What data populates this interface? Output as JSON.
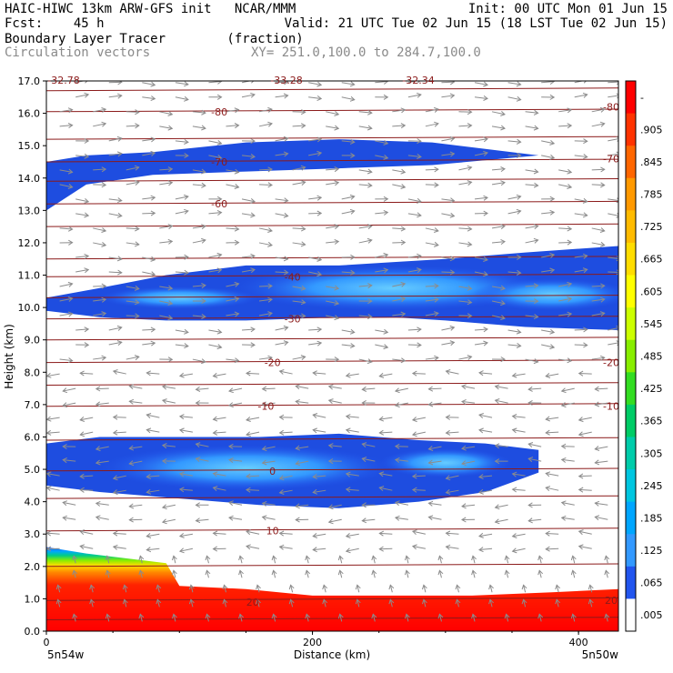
{
  "header": {
    "line1_left": "HAIC-HIWC 13km ARW-GFS init   NCAR/MMM",
    "line1_right": "Init: 00 UTC Mon 01 Jun 15",
    "line2_left": "Fcst:    45 h",
    "line2_right": "Valid: 21 UTC Tue 02 Jun 15 (18 LST Tue 02 Jun 15)",
    "line3_left": "Boundary Layer Tracer        (fraction)",
    "line4_left": "Circulation vectors",
    "line4_right": "XY= 251.0,100.0 to 284.7,100.0"
  },
  "colors": {
    "contour": "#8b1a1a",
    "vector": "#8c8c8c",
    "low_cloud": "#1e4de0"
  },
  "chart_data": {
    "type": "heatmap",
    "title": "Boundary Layer Tracer",
    "units": "(fraction)",
    "xlabel": "Distance (km)",
    "ylabel": "Height (km)",
    "xlim": [
      0,
      430
    ],
    "ylim": [
      0,
      17
    ],
    "x_ticks": [
      "0",
      "200",
      "400"
    ],
    "y_ticks": [
      "0.0",
      "1.0",
      "2.0",
      "3.0",
      "4.0",
      "5.0",
      "6.0",
      "7.0",
      "8.0",
      "9.0",
      "10.0",
      "11.0",
      "12.0",
      "13.0",
      "14.0",
      "15.0",
      "16.0",
      "17.0"
    ],
    "x_endpoint_labels": [
      "5n54w",
      "5n50w"
    ],
    "top_labels": [
      "-32.78",
      "-33.28",
      "-32.34"
    ],
    "colorbar": {
      "labels": [
        "-",
        ".905",
        ".845",
        ".785",
        ".725",
        ".665",
        ".605",
        ".545",
        ".485",
        ".425",
        ".365",
        ".305",
        ".245",
        ".185",
        ".125",
        ".065",
        ".005"
      ],
      "colors": [
        "#ff0000",
        "#ff3300",
        "#ff6600",
        "#ff9900",
        "#ffbb00",
        "#ffdd00",
        "#ffff00",
        "#ccff00",
        "#88ee00",
        "#33dd22",
        "#00cc66",
        "#00ccaa",
        "#00c6e0",
        "#00a6ff",
        "#3399ff",
        "#2255ee",
        "#ffffff"
      ]
    },
    "temperature_contours": [
      {
        "label": "20",
        "positions": [
          [
            155,
            0.9
          ],
          [
            430,
            0.95
          ]
        ]
      },
      {
        "label": "10",
        "positions": [
          [
            170,
            3.1
          ]
        ]
      },
      {
        "label": "0",
        "positions": [
          [
            170,
            4.95
          ]
        ]
      },
      {
        "label": "-10",
        "positions": [
          [
            165,
            6.95
          ],
          [
            430,
            6.95
          ]
        ]
      },
      {
        "label": "-20",
        "positions": [
          [
            170,
            8.3
          ],
          [
            430,
            8.3
          ]
        ]
      },
      {
        "label": "-30",
        "positions": [
          [
            185,
            9.65
          ]
        ]
      },
      {
        "label": "-40",
        "positions": [
          [
            185,
            10.95
          ]
        ]
      },
      {
        "label": "-60",
        "positions": [
          [
            130,
            13.2
          ]
        ]
      },
      {
        "label": "-70",
        "positions": [
          [
            130,
            14.5
          ],
          [
            430,
            14.6
          ]
        ]
      },
      {
        "label": "-80",
        "positions": [
          [
            130,
            16.05
          ],
          [
            430,
            16.2
          ]
        ]
      }
    ],
    "tracer_regions": [
      {
        "name": "upper-layer",
        "level": 0.005,
        "x": [
          0,
          30,
          80,
          150,
          220,
          290,
          370
        ],
        "top": [
          14.5,
          14.7,
          14.8,
          15.1,
          15.2,
          15.1,
          14.7
        ],
        "bottom": [
          13.0,
          13.8,
          14.1,
          14.2,
          14.3,
          14.4,
          14.7
        ]
      },
      {
        "name": "anvil-layer",
        "level": 0.005,
        "x": [
          0,
          40,
          90,
          150,
          220,
          260,
          300,
          360,
          430
        ],
        "top": [
          10.3,
          10.6,
          11.0,
          11.3,
          11.3,
          11.4,
          11.5,
          11.7,
          11.9
        ],
        "bottom": [
          9.9,
          9.7,
          9.6,
          9.6,
          9.7,
          9.7,
          9.6,
          9.4,
          9.3
        ]
      },
      {
        "name": "midlevel-layer",
        "level": 0.005,
        "x": [
          0,
          40,
          100,
          160,
          220,
          280,
          330,
          370
        ],
        "top": [
          5.8,
          6.0,
          6.0,
          6.0,
          6.1,
          5.9,
          5.8,
          5.6
        ],
        "bottom": [
          4.5,
          4.3,
          4.1,
          3.9,
          3.8,
          4.0,
          4.3,
          4.9
        ]
      },
      {
        "name": "boundary-layer",
        "level": 0.9,
        "x": [
          0,
          30,
          90,
          100,
          150,
          200,
          260,
          320,
          380,
          430
        ],
        "top": [
          2.6,
          2.4,
          2.1,
          1.4,
          1.3,
          1.1,
          1.1,
          1.1,
          1.2,
          1.3
        ],
        "bottom": [
          0,
          0,
          0,
          0,
          0,
          0,
          0,
          0,
          0,
          0
        ]
      }
    ]
  }
}
